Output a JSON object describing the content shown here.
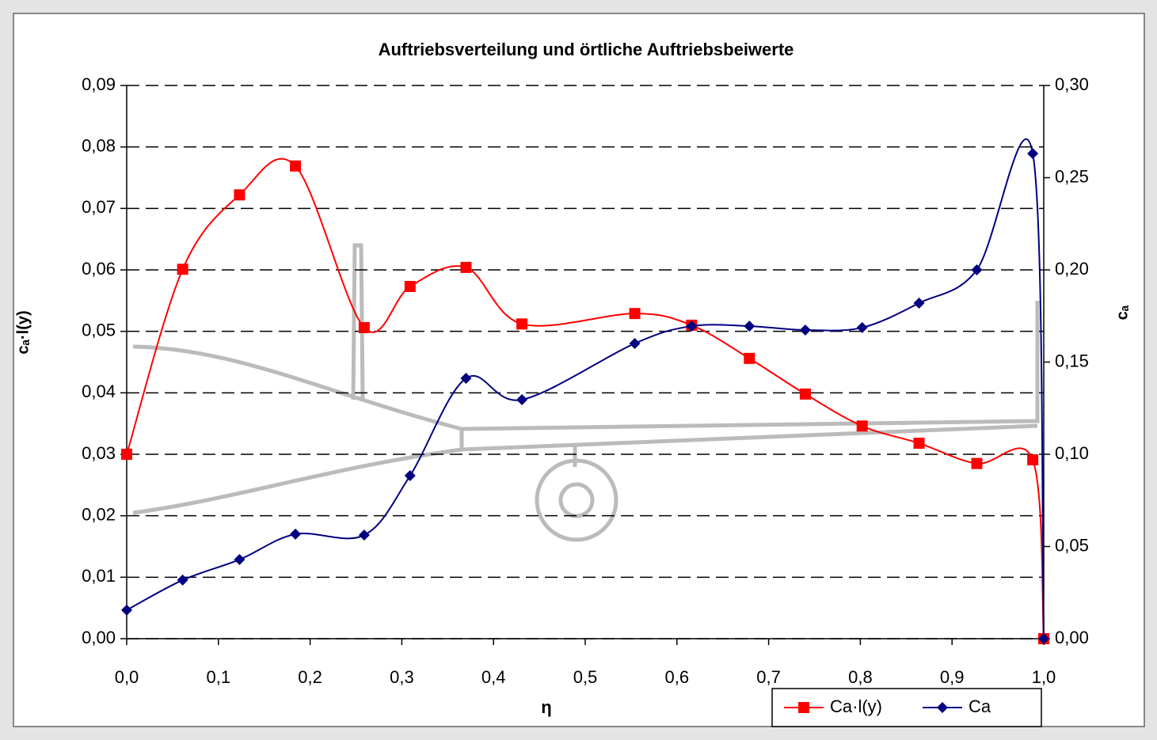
{
  "chart_data": {
    "type": "line",
    "title": "Auftriebsverteilung und örtliche Auftriebsbeiwerte",
    "x_label": "η",
    "y_label": "cₐ·l(y)",
    "y2_label": "cₐ",
    "xlim": [
      0,
      1
    ],
    "ylim": [
      0,
      0.09
    ],
    "y2lim": [
      0,
      0.3
    ],
    "xticks": [
      {
        "value": 0,
        "label": "0,0"
      },
      {
        "value": 0.1,
        "label": "0,1"
      },
      {
        "value": 0.2,
        "label": "0,2"
      },
      {
        "value": 0.3,
        "label": "0,3"
      },
      {
        "value": 0.4,
        "label": "0,4"
      },
      {
        "value": 0.5,
        "label": "0,5"
      },
      {
        "value": 0.6,
        "label": "0,6"
      },
      {
        "value": 0.7,
        "label": "0,7"
      },
      {
        "value": 0.8,
        "label": "0,8"
      },
      {
        "value": 0.9,
        "label": "0,9"
      },
      {
        "value": 1,
        "label": "1,0"
      }
    ],
    "yticks": [
      {
        "value": 0,
        "label": "0,00"
      },
      {
        "value": 0.01,
        "label": "0,01"
      },
      {
        "value": 0.02,
        "label": "0,02"
      },
      {
        "value": 0.03,
        "label": "0,03"
      },
      {
        "value": 0.04,
        "label": "0,04"
      },
      {
        "value": 0.05,
        "label": "0,05"
      },
      {
        "value": 0.06,
        "label": "0,06"
      },
      {
        "value": 0.07,
        "label": "0,07"
      },
      {
        "value": 0.08,
        "label": "0,08"
      },
      {
        "value": 0.09,
        "label": "0,09"
      }
    ],
    "y2ticks": [
      {
        "value": 0,
        "label": "0,00"
      },
      {
        "value": 0.05,
        "label": "0,05"
      },
      {
        "value": 0.1,
        "label": "0,10"
      },
      {
        "value": 0.15,
        "label": "0,15"
      },
      {
        "value": 0.2,
        "label": "0,20"
      },
      {
        "value": 0.25,
        "label": "0,25"
      },
      {
        "value": 0.3,
        "label": "0,30"
      }
    ],
    "grid": true,
    "x": [
      0,
      0.061,
      0.123,
      0.184,
      0.259,
      0.309,
      0.37,
      0.431,
      0.554,
      0.616,
      0.679,
      0.74,
      0.802,
      0.864,
      0.927,
      0.988,
      1.0
    ],
    "series": [
      {
        "name": "Ca·l(y)",
        "color": "#ff0000",
        "marker": "square",
        "values": [
          0.03,
          0.0601,
          0.0722,
          0.0769,
          0.0506,
          0.0573,
          0.0604,
          0.0512,
          0.0529,
          0.051,
          0.0456,
          0.0398,
          0.0346,
          0.0318,
          0.0285,
          0.0291,
          0
        ]
      },
      {
        "name": "Ca",
        "color": "#000080",
        "marker": "diamond",
        "axis": "y2",
        "values": [
          0.0155,
          0.0318,
          0.0429,
          0.0567,
          0.0562,
          0.0884,
          0.1412,
          0.1296,
          0.1601,
          0.1695,
          0.1695,
          0.1674,
          0.1687,
          0.182,
          0.2,
          0.2631,
          0
        ]
      }
    ]
  }
}
